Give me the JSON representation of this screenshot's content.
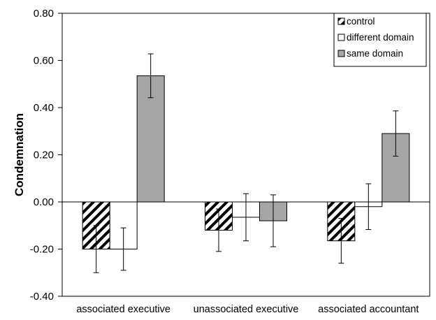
{
  "chart_data": {
    "type": "bar",
    "title": "",
    "xlabel": "",
    "ylabel": "Condemnation",
    "ylim": [
      -0.4,
      0.8
    ],
    "yticks": [
      "0.80",
      "0.60",
      "0.40",
      "0.20",
      "0.00",
      "-0.20",
      "-0.40"
    ],
    "ytick_values": [
      0.8,
      0.6,
      0.4,
      0.2,
      0.0,
      -0.2,
      -0.4
    ],
    "grid": false,
    "legend_position": "top-right",
    "error_bars": true,
    "categories": [
      "associated executive",
      "unassociated executive",
      "associated accountant"
    ],
    "series": [
      {
        "name": "control",
        "style": "hatched",
        "color": "#ffffff",
        "values": [
          -0.2,
          -0.12,
          -0.165
        ],
        "error": [
          0.1,
          0.09,
          0.095
        ]
      },
      {
        "name": "different domain",
        "style": "solid",
        "color": "#ffffff",
        "values": [
          -0.2,
          -0.065,
          -0.02
        ],
        "error": [
          0.09,
          0.1,
          0.097
        ]
      },
      {
        "name": "same domain",
        "style": "solid",
        "color": "#a6a6a6",
        "values": [
          0.535,
          -0.08,
          0.29
        ],
        "error": [
          0.093,
          0.11,
          0.096
        ]
      }
    ]
  }
}
